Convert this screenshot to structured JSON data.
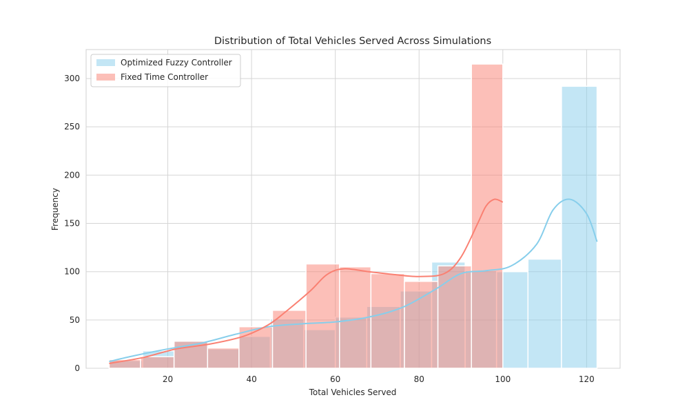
{
  "chart_data": {
    "type": "histogram",
    "title": "Distribution of Total Vehicles Served Across Simulations",
    "xlabel": "Total Vehicles Served",
    "ylabel": "Frequency",
    "xlim": [
      0.5,
      128
    ],
    "ylim": [
      0,
      330
    ],
    "x_ticks": [
      20,
      40,
      60,
      80,
      100,
      120
    ],
    "y_ticks": [
      0,
      50,
      100,
      150,
      200,
      250,
      300
    ],
    "grid": true,
    "legend_position": "top-left",
    "series": [
      {
        "name": "Optimized Fuzzy Controller",
        "color": "#87ceeb",
        "bins": [
          {
            "x0": 6.0,
            "x1": 14.0,
            "count": 8
          },
          {
            "x0": 14.0,
            "x1": 21.5,
            "count": 18
          },
          {
            "x0": 21.5,
            "x1": 29.5,
            "count": 28
          },
          {
            "x0": 29.5,
            "x1": 37.0,
            "count": 20
          },
          {
            "x0": 37.0,
            "x1": 44.5,
            "count": 33
          },
          {
            "x0": 44.5,
            "x1": 52.5,
            "count": 51
          },
          {
            "x0": 52.5,
            "x1": 60.0,
            "count": 40
          },
          {
            "x0": 60.0,
            "x1": 67.5,
            "count": 53
          },
          {
            "x0": 67.5,
            "x1": 75.5,
            "count": 64
          },
          {
            "x0": 75.5,
            "x1": 83.0,
            "count": 80
          },
          {
            "x0": 83.0,
            "x1": 91.0,
            "count": 110
          },
          {
            "x0": 91.0,
            "x1": 98.5,
            "count": 101
          },
          {
            "x0": 98.5,
            "x1": 106.0,
            "count": 100
          },
          {
            "x0": 106.0,
            "x1": 114.0,
            "count": 113
          },
          {
            "x0": 114.0,
            "x1": 122.5,
            "count": 292
          }
        ],
        "kde": [
          [
            6,
            7
          ],
          [
            12,
            13
          ],
          [
            20,
            20
          ],
          [
            28,
            26
          ],
          [
            36,
            35
          ],
          [
            44,
            43
          ],
          [
            52,
            46
          ],
          [
            60,
            48
          ],
          [
            68,
            53
          ],
          [
            76,
            63
          ],
          [
            84,
            82
          ],
          [
            90,
            98
          ],
          [
            96,
            101
          ],
          [
            102,
            106
          ],
          [
            108,
            128
          ],
          [
            112,
            164
          ],
          [
            116,
            175
          ],
          [
            120,
            160
          ],
          [
            122.5,
            131
          ]
        ]
      },
      {
        "name": "Fixed Time Controller",
        "color": "#fa8072",
        "bins": [
          {
            "x0": 6.0,
            "x1": 13.5,
            "count": 9
          },
          {
            "x0": 13.5,
            "x1": 21.5,
            "count": 12
          },
          {
            "x0": 21.5,
            "x1": 29.5,
            "count": 28
          },
          {
            "x0": 29.5,
            "x1": 37.0,
            "count": 21
          },
          {
            "x0": 37.0,
            "x1": 45.0,
            "count": 43
          },
          {
            "x0": 45.0,
            "x1": 53.0,
            "count": 60
          },
          {
            "x0": 53.0,
            "x1": 61.0,
            "count": 108
          },
          {
            "x0": 61.0,
            "x1": 68.5,
            "count": 105
          },
          {
            "x0": 68.5,
            "x1": 76.5,
            "count": 98
          },
          {
            "x0": 76.5,
            "x1": 84.5,
            "count": 90
          },
          {
            "x0": 84.5,
            "x1": 92.5,
            "count": 106
          },
          {
            "x0": 92.5,
            "x1": 100.0,
            "count": 315
          }
        ],
        "kde": [
          [
            6,
            5
          ],
          [
            14,
            11
          ],
          [
            22,
            20
          ],
          [
            30,
            25
          ],
          [
            38,
            33
          ],
          [
            44,
            45
          ],
          [
            48,
            58
          ],
          [
            54,
            80
          ],
          [
            58,
            97
          ],
          [
            62,
            103
          ],
          [
            68,
            100
          ],
          [
            74,
            97
          ],
          [
            80,
            95
          ],
          [
            86,
            98
          ],
          [
            90,
            115
          ],
          [
            94,
            150
          ],
          [
            96,
            168
          ],
          [
            98,
            175
          ],
          [
            100,
            172
          ]
        ]
      }
    ]
  }
}
